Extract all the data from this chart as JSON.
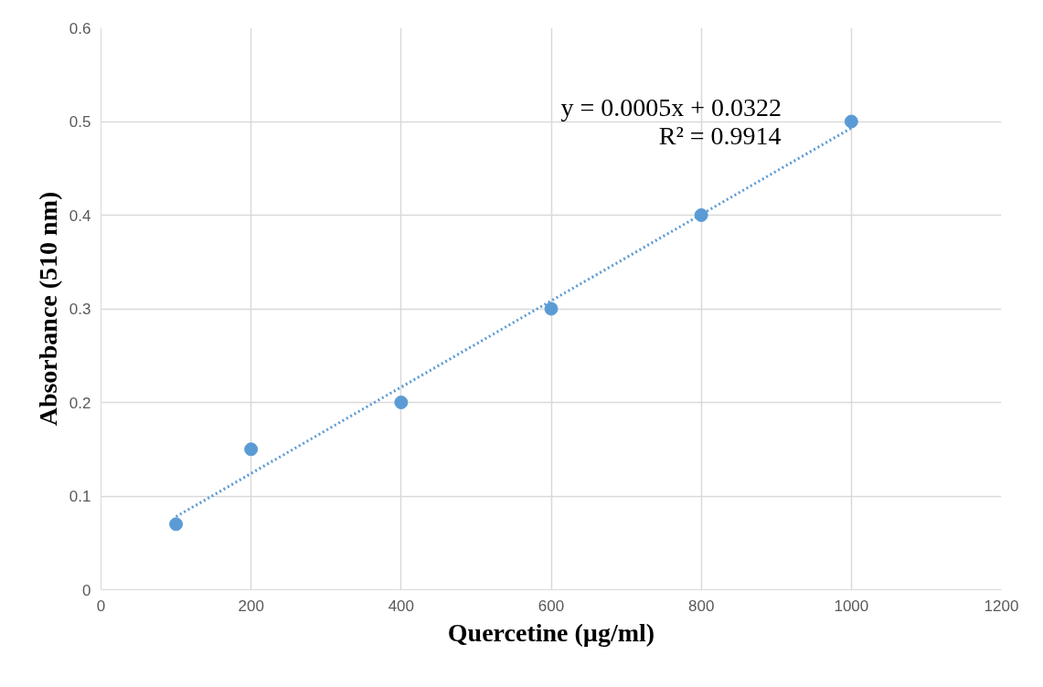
{
  "chart_data": {
    "type": "scatter",
    "xlabel": "Quercetine (µg/ml)",
    "ylabel": "Absorbance (510 nm)",
    "series": [
      {
        "color": "#5b9bd5",
        "marker": "circle",
        "x": [
          100,
          200,
          400,
          600,
          800,
          1000
        ],
        "values": [
          0.07,
          0.15,
          0.2,
          0.3,
          0.4,
          0.5
        ]
      },
      {
        "type": "line",
        "color": "#5b9bd5",
        "line_style": "dotted",
        "x": [
          100,
          1000
        ],
        "values": [
          0.078,
          0.493
        ]
      }
    ],
    "annotations": [
      "y = 0.0005x + 0.0322",
      "R² = 0.9914"
    ],
    "xlim": [
      0,
      1200
    ],
    "xticks": [
      0,
      200,
      400,
      600,
      800,
      1000,
      1200
    ],
    "ylim": [
      0,
      0.6
    ],
    "yticks": [
      {
        "value": 0,
        "label": "0"
      },
      0.1,
      0.2,
      0.3,
      0.4,
      0.5,
      0.6
    ],
    "grid": true
  }
}
